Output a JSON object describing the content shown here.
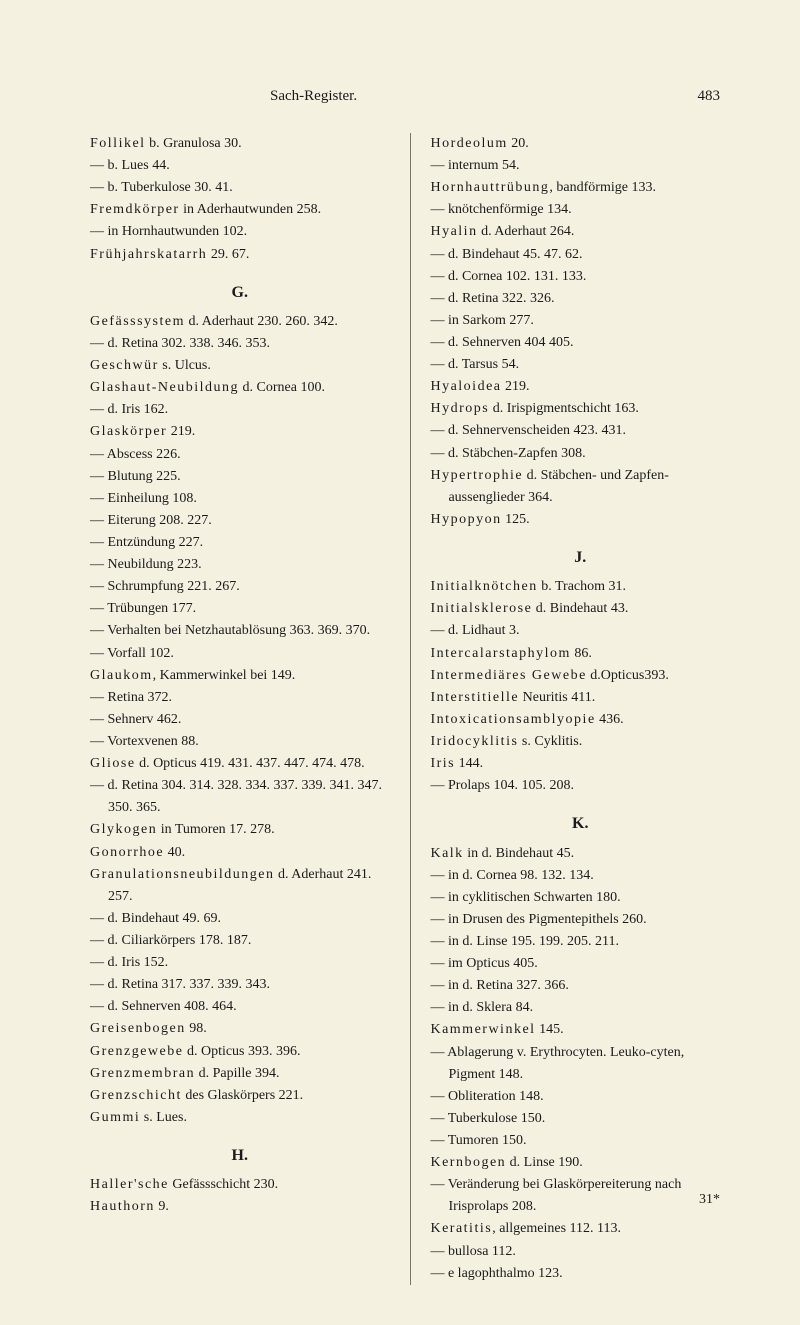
{
  "header": {
    "title": "Sach-Register.",
    "page_number": "483"
  },
  "left_column": [
    {
      "t": "entry",
      "text": "Follikel b. Granulosa 30.",
      "spaced": "Follikel"
    },
    {
      "t": "entry",
      "text": "— b. Lues 44."
    },
    {
      "t": "entry",
      "text": "— b. Tuberkulose 30. 41."
    },
    {
      "t": "entry",
      "text": "Fremdkörper in Aderhautwunden 258.",
      "spaced": "Fremdkörper"
    },
    {
      "t": "entry",
      "text": "— in Hornhautwunden 102."
    },
    {
      "t": "entry",
      "text": "Frühjahrskatarrh 29. 67.",
      "spaced": "Frühjahrskatarrh"
    },
    {
      "t": "letter",
      "text": "G."
    },
    {
      "t": "entry",
      "text": "Gefässsystem d. Aderhaut 230. 260. 342.",
      "spaced": "Gefässsystem"
    },
    {
      "t": "entry",
      "text": "— d. Retina 302. 338. 346. 353."
    },
    {
      "t": "entry",
      "text": "Geschwür s. Ulcus.",
      "spaced": "Geschwür"
    },
    {
      "t": "entry",
      "text": "Glashaut-Neubildung d. Cornea 100.",
      "spaced": "Glashaut-Neubildung"
    },
    {
      "t": "entry",
      "text": "— d. Iris 162."
    },
    {
      "t": "entry",
      "text": "Glaskörper 219.",
      "spaced": "Glaskörper"
    },
    {
      "t": "entry",
      "text": "— Abscess 226."
    },
    {
      "t": "entry",
      "text": "— Blutung 225."
    },
    {
      "t": "entry",
      "text": "— Einheilung 108."
    },
    {
      "t": "entry",
      "text": "— Eiterung 208. 227."
    },
    {
      "t": "entry",
      "text": "— Entzündung 227."
    },
    {
      "t": "entry",
      "text": "— Neubildung 223."
    },
    {
      "t": "entry",
      "text": "— Schrumpfung 221. 267."
    },
    {
      "t": "entry",
      "text": "— Trübungen 177."
    },
    {
      "t": "entry",
      "text": "— Verhalten bei Netzhautablösung 363. 369. 370."
    },
    {
      "t": "entry",
      "text": "— Vorfall 102."
    },
    {
      "t": "entry",
      "text": "Glaukom, Kammerwinkel bei 149.",
      "spaced": "Glaukom"
    },
    {
      "t": "entry",
      "text": "— Retina 372."
    },
    {
      "t": "entry",
      "text": "— Sehnerv 462."
    },
    {
      "t": "entry",
      "text": "— Vortexvenen 88."
    },
    {
      "t": "entry",
      "text": "Gliose d. Opticus 419. 431. 437. 447. 474. 478.",
      "spaced": "Gliose"
    },
    {
      "t": "entry",
      "text": "— d. Retina 304. 314. 328. 334. 337. 339. 341. 347. 350. 365."
    },
    {
      "t": "entry",
      "text": "Glykogen in Tumoren 17. 278.",
      "spaced": "Glykogen"
    },
    {
      "t": "entry",
      "text": "Gonorrhoe 40.",
      "spaced": "Gonorrhoe"
    },
    {
      "t": "entry",
      "text": "Granulationsneubildungen d. Aderhaut 241. 257.",
      "spaced": "Granulationsneubildungen"
    },
    {
      "t": "entry",
      "text": "— d. Bindehaut 49. 69."
    },
    {
      "t": "entry",
      "text": "— d. Ciliarkörpers 178. 187."
    },
    {
      "t": "entry",
      "text": "— d. Iris 152."
    },
    {
      "t": "entry",
      "text": "— d. Retina 317. 337. 339. 343."
    },
    {
      "t": "entry",
      "text": "— d. Sehnerven 408. 464."
    },
    {
      "t": "entry",
      "text": "Greisenbogen 98.",
      "spaced": "Greisenbogen"
    },
    {
      "t": "entry",
      "text": "Grenzgewebe d. Opticus 393. 396.",
      "spaced": "Grenzgewebe"
    },
    {
      "t": "entry",
      "text": "Grenzmembran d. Papille 394.",
      "spaced": "Grenzmembran"
    },
    {
      "t": "entry",
      "text": "Grenzschicht des Glaskörpers 221.",
      "spaced": "Grenzschicht"
    },
    {
      "t": "entry",
      "text": "Gummi s. Lues.",
      "spaced": "Gummi"
    },
    {
      "t": "letter",
      "text": "H."
    },
    {
      "t": "entry",
      "text": "Haller'sche Gefässschicht 230.",
      "spaced": "Haller'sche"
    },
    {
      "t": "entry",
      "text": "Hauthorn 9.",
      "spaced": "Hauthorn"
    }
  ],
  "right_column": [
    {
      "t": "entry",
      "text": "Hordeolum 20.",
      "spaced": "Hordeolum"
    },
    {
      "t": "entry",
      "text": "— internum 54."
    },
    {
      "t": "entry",
      "text": "Hornhauttrübung, bandförmige 133.",
      "spaced": "Hornhauttrübung"
    },
    {
      "t": "entry",
      "text": "— knötchenförmige 134."
    },
    {
      "t": "entry",
      "text": "Hyalin d. Aderhaut 264.",
      "spaced": "Hyalin"
    },
    {
      "t": "entry",
      "text": "— d. Bindehaut 45. 47. 62."
    },
    {
      "t": "entry",
      "text": "— d. Cornea 102. 131. 133."
    },
    {
      "t": "entry",
      "text": "— d. Retina 322. 326."
    },
    {
      "t": "entry",
      "text": "— in Sarkom 277."
    },
    {
      "t": "entry",
      "text": "— d. Sehnerven 404 405."
    },
    {
      "t": "entry",
      "text": "— d. Tarsus 54."
    },
    {
      "t": "entry",
      "text": "Hyaloidea 219.",
      "spaced": "Hyaloidea"
    },
    {
      "t": "entry",
      "text": "Hydrops d. Irispigmentschicht 163.",
      "spaced": "Hydrops"
    },
    {
      "t": "entry",
      "text": "— d. Sehnervenscheiden 423. 431."
    },
    {
      "t": "entry",
      "text": "— d. Stäbchen-Zapfen 308."
    },
    {
      "t": "entry",
      "text": "Hypertrophie d. Stäbchen- und Zapfen-aussenglieder 364.",
      "spaced": "Hypertrophie"
    },
    {
      "t": "entry",
      "text": "Hypopyon 125.",
      "spaced": "Hypopyon"
    },
    {
      "t": "letter",
      "text": "J."
    },
    {
      "t": "entry",
      "text": "Initialknötchen b. Trachom 31.",
      "spaced": "Initialknötchen"
    },
    {
      "t": "entry",
      "text": "Initialsklerose d. Bindehaut 43.",
      "spaced": "Initialsklerose"
    },
    {
      "t": "entry",
      "text": "— d. Lidhaut 3."
    },
    {
      "t": "entry",
      "text": "Intercalarstaphylom 86.",
      "spaced": "Intercalarstaphylom"
    },
    {
      "t": "entry",
      "text": "Intermediäres Gewebe d.Opticus393.",
      "spaced": "Intermediäres Gewebe"
    },
    {
      "t": "entry",
      "text": "Interstitielle Neuritis 411.",
      "spaced": "Interstitielle"
    },
    {
      "t": "entry",
      "text": "Intoxicationsamblyopie 436.",
      "spaced": "Intoxicationsamblyopie"
    },
    {
      "t": "entry",
      "text": "Iridocyklitis s. Cyklitis.",
      "spaced": "Iridocyklitis"
    },
    {
      "t": "entry",
      "text": "Iris 144.",
      "spaced": "Iris"
    },
    {
      "t": "entry",
      "text": "— Prolaps 104. 105. 208."
    },
    {
      "t": "letter",
      "text": "K."
    },
    {
      "t": "entry",
      "text": "Kalk in d. Bindehaut 45.",
      "spaced": "Kalk"
    },
    {
      "t": "entry",
      "text": "— in d. Cornea 98. 132. 134."
    },
    {
      "t": "entry",
      "text": "— in cyklitischen Schwarten 180."
    },
    {
      "t": "entry",
      "text": "— in Drusen des Pigmentepithels 260."
    },
    {
      "t": "entry",
      "text": "— in d. Linse 195. 199. 205. 211."
    },
    {
      "t": "entry",
      "text": "— im Opticus 405."
    },
    {
      "t": "entry",
      "text": "— in d. Retina 327. 366."
    },
    {
      "t": "entry",
      "text": "— in d. Sklera 84."
    },
    {
      "t": "entry",
      "text": "Kammerwinkel 145.",
      "spaced": "Kammerwinkel"
    },
    {
      "t": "entry",
      "text": "— Ablagerung v. Erythrocyten. Leuko-cyten, Pigment 148."
    },
    {
      "t": "entry",
      "text": "— Obliteration 148."
    },
    {
      "t": "entry",
      "text": "— Tuberkulose 150."
    },
    {
      "t": "entry",
      "text": "— Tumoren 150."
    },
    {
      "t": "entry",
      "text": "Kernbogen d. Linse 190.",
      "spaced": "Kernbogen"
    },
    {
      "t": "entry",
      "text": "— Veränderung bei Glaskörpereiterung nach Irisprolaps 208."
    },
    {
      "t": "entry",
      "text": "Keratitis, allgemeines 112. 113.",
      "spaced": "Keratitis"
    },
    {
      "t": "entry",
      "text": "— bullosa 112."
    },
    {
      "t": "entry",
      "text": "— e lagophthalmo 123."
    }
  ],
  "footer": {
    "signature": "31*"
  }
}
